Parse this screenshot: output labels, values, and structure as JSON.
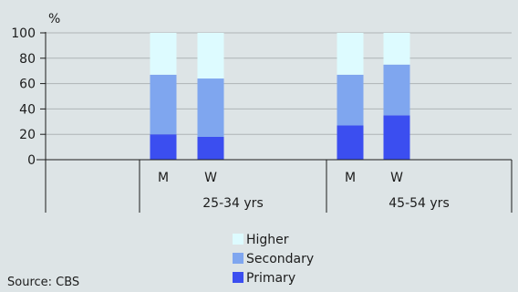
{
  "chart_data": {
    "type": "bar",
    "stacked": true,
    "y_unit_label": "%",
    "ylim": [
      0,
      100
    ],
    "yticks": [
      0,
      20,
      40,
      60,
      80,
      100
    ],
    "grid": true,
    "groups": [
      {
        "label": "25-34 yrs",
        "bars": [
          {
            "label": "M",
            "primary": 20,
            "secondary": 47,
            "higher": 33
          },
          {
            "label": "W",
            "primary": 18,
            "secondary": 46,
            "higher": 36
          }
        ]
      },
      {
        "label": "45-54 yrs",
        "bars": [
          {
            "label": "M",
            "primary": 27,
            "secondary": 40,
            "higher": 33
          },
          {
            "label": "W",
            "primary": 35,
            "secondary": 40,
            "higher": 25
          }
        ]
      }
    ],
    "series": [
      {
        "key": "primary",
        "name": "Primary",
        "color": "#3b4ef0"
      },
      {
        "key": "secondary",
        "name": "Secondary",
        "color": "#7fa6ef"
      },
      {
        "key": "higher",
        "name": "Higher",
        "color": "#ddfbff"
      }
    ],
    "legend_order": [
      "higher",
      "secondary",
      "primary"
    ],
    "legend_placement": "bottom-center",
    "source": "Source: CBS"
  }
}
